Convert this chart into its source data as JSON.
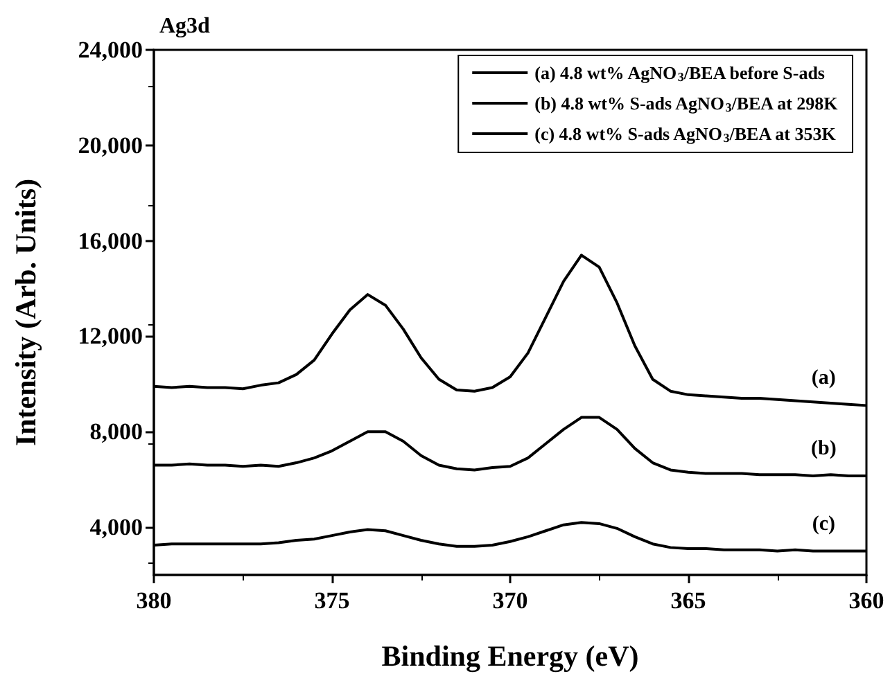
{
  "chart_data": {
    "type": "line",
    "title": "Ag3d",
    "xlabel": "Binding Energy (eV)",
    "ylabel": "Intensity (Arb. Units)",
    "x": [
      380,
      379.5,
      379,
      378.5,
      378,
      377.5,
      377,
      376.5,
      376,
      375.5,
      375,
      374.5,
      374,
      373.5,
      373,
      372.5,
      372,
      371.5,
      371,
      370.5,
      370,
      369.5,
      369,
      368.5,
      368,
      367.5,
      367,
      366.5,
      366,
      365.5,
      365,
      364.5,
      364,
      363.5,
      363,
      362.5,
      362,
      361.5,
      361,
      360.5,
      360
    ],
    "series": [
      {
        "name": "(a) 4.8 wt% AgNO$_{3}$/BEA before S-ads",
        "color": "#000000",
        "values": [
          9900,
          9850,
          9900,
          9850,
          9850,
          9800,
          9950,
          10050,
          10400,
          11000,
          12100,
          13100,
          13750,
          13300,
          12300,
          11100,
          10200,
          9750,
          9700,
          9850,
          10300,
          11300,
          12800,
          14300,
          15400,
          14900,
          13400,
          11600,
          10200,
          9700,
          9550,
          9500,
          9450,
          9400,
          9400,
          9350,
          9300,
          9250,
          9200,
          9150,
          9100
        ]
      },
      {
        "name": "(b) 4.8 wt% S-ads AgNO$_{3}$/BEA at 298K",
        "color": "#000000",
        "values": [
          6600,
          6600,
          6650,
          6600,
          6600,
          6550,
          6600,
          6550,
          6700,
          6900,
          7200,
          7600,
          8000,
          8000,
          7600,
          7000,
          6600,
          6450,
          6400,
          6500,
          6550,
          6900,
          7500,
          8100,
          8600,
          8600,
          8100,
          7300,
          6700,
          6400,
          6300,
          6250,
          6250,
          6250,
          6200,
          6200,
          6200,
          6150,
          6200,
          6150,
          6150
        ]
      },
      {
        "name": "(c) 4.8 wt% S-ads AgNO$_{3}$/BEA at 353K",
        "color": "#000000",
        "values": [
          3250,
          3300,
          3300,
          3300,
          3300,
          3300,
          3300,
          3350,
          3450,
          3500,
          3650,
          3800,
          3900,
          3850,
          3650,
          3450,
          3300,
          3200,
          3200,
          3250,
          3400,
          3600,
          3850,
          4100,
          4200,
          4150,
          3950,
          3600,
          3300,
          3150,
          3100,
          3100,
          3050,
          3050,
          3050,
          3000,
          3050,
          3000,
          3000,
          3000,
          3000
        ]
      }
    ],
    "annotations": [
      "(a)",
      "(b)",
      "(c)"
    ],
    "xlim": [
      380,
      360
    ],
    "xticks": [
      380,
      375,
      370,
      365,
      360
    ],
    "ylim": [
      2000,
      24000
    ],
    "yticks": [
      {
        "value": 4000,
        "label": "4,000"
      },
      {
        "value": 8000,
        "label": "8,000"
      },
      {
        "value": 12000,
        "label": "12,000"
      },
      {
        "value": 16000,
        "label": "16,000"
      },
      {
        "value": 20000,
        "label": "20,000"
      },
      {
        "value": 24000,
        "label": "24,000"
      }
    ],
    "grid": false,
    "legend": "top right",
    "marker": "none",
    "line_style": "solid"
  }
}
